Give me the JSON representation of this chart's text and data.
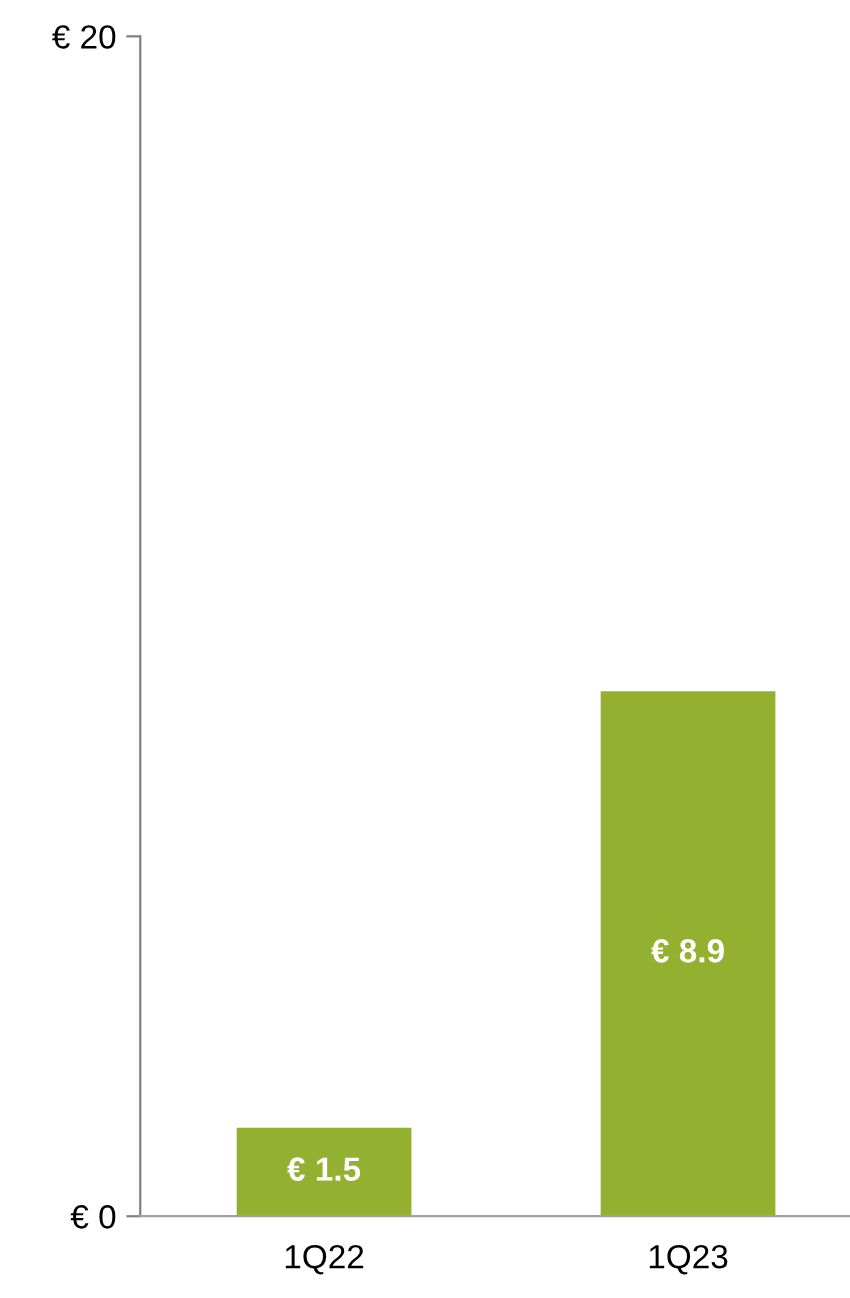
{
  "chart_data": {
    "type": "bar",
    "categories": [
      "1Q22",
      "1Q23"
    ],
    "values": [
      1.5,
      8.9
    ],
    "color": "#94b031",
    "value_labels": [
      "€ 1.5",
      "€ 8.9"
    ],
    "ylim": [
      0,
      20
    ],
    "yticks": [
      {
        "value": 0,
        "label": "€ 0"
      },
      {
        "value": 20,
        "label": "€ 20"
      }
    ],
    "grid": false,
    "legend": false
  }
}
